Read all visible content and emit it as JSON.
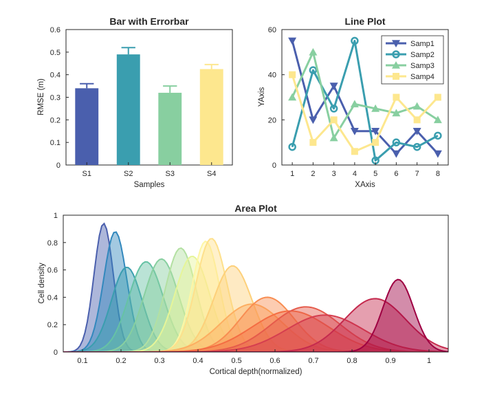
{
  "chart_data": [
    {
      "type": "bar",
      "title": "Bar with Errorbar",
      "xlabel": "Samples",
      "ylabel": "RMSE (m)",
      "categories": [
        "S1",
        "S2",
        "S3",
        "S4"
      ],
      "values": [
        0.34,
        0.49,
        0.32,
        0.425
      ],
      "errors": [
        0.02,
        0.03,
        0.03,
        0.02
      ],
      "colors": [
        "#4a5fad",
        "#3a9eaf",
        "#88cfa0",
        "#fde78e"
      ],
      "ylim": [
        0,
        0.6
      ],
      "yticks": [
        "0",
        "0.1",
        "0.2",
        "0.3",
        "0.4",
        "0.5",
        "0.6"
      ]
    },
    {
      "type": "line",
      "title": "Line Plot",
      "xlabel": "XAxis",
      "ylabel": "YAxis",
      "x": [
        1,
        2,
        3,
        4,
        5,
        6,
        7,
        8
      ],
      "xlim": [
        0.5,
        8.5
      ],
      "ylim": [
        0,
        60
      ],
      "xticks": [
        "1",
        "2",
        "3",
        "4",
        "5",
        "6",
        "7",
        "8"
      ],
      "yticks": [
        "0",
        "20",
        "40",
        "60"
      ],
      "legend_position": "top-right",
      "series": [
        {
          "name": "Samp1",
          "values": [
            55,
            20,
            35,
            15,
            15,
            5,
            15,
            5
          ],
          "color": "#4a5fad",
          "marker": "triangle-down"
        },
        {
          "name": "Samp2",
          "values": [
            8,
            42,
            25,
            55,
            2,
            10,
            8,
            13
          ],
          "color": "#3a9eaf",
          "marker": "circle"
        },
        {
          "name": "Samp3",
          "values": [
            30,
            50,
            12,
            27,
            25,
            23,
            26,
            20
          ],
          "color": "#88cfa0",
          "marker": "triangle-up"
        },
        {
          "name": "Samp4",
          "values": [
            40,
            10,
            20,
            6,
            10,
            30,
            20,
            30
          ],
          "color": "#fde78e",
          "marker": "square"
        }
      ]
    },
    {
      "type": "area",
      "title": "Area Plot",
      "xlabel": "Cortical depth(normalized)",
      "ylabel": "Cell density",
      "xlim": [
        0.05,
        1.05
      ],
      "ylim": [
        0,
        1
      ],
      "xticks": [
        "0.1",
        "0.2",
        "0.3",
        "0.4",
        "0.5",
        "0.6",
        "0.7",
        "0.8",
        "0.9",
        "1"
      ],
      "yticks": [
        "0",
        "0.2",
        "0.4",
        "0.6",
        "0.8",
        "1"
      ],
      "series": [
        {
          "peak_x": 0.155,
          "peak_y": 0.94,
          "width": 0.025,
          "color": "#4a5fad"
        },
        {
          "peak_x": 0.185,
          "peak_y": 0.88,
          "width": 0.03,
          "color": "#3288bd"
        },
        {
          "peak_x": 0.215,
          "peak_y": 0.62,
          "width": 0.04,
          "color": "#3a9eaf"
        },
        {
          "peak_x": 0.265,
          "peak_y": 0.66,
          "width": 0.045,
          "color": "#66c2a5"
        },
        {
          "peak_x": 0.305,
          "peak_y": 0.68,
          "width": 0.045,
          "color": "#88cfa0"
        },
        {
          "peak_x": 0.355,
          "peak_y": 0.76,
          "width": 0.04,
          "color": "#b3e0a2"
        },
        {
          "peak_x": 0.385,
          "peak_y": 0.7,
          "width": 0.045,
          "color": "#e6f598"
        },
        {
          "peak_x": 0.42,
          "peak_y": 0.81,
          "width": 0.035,
          "color": "#fef6a5"
        },
        {
          "peak_x": 0.435,
          "peak_y": 0.83,
          "width": 0.04,
          "color": "#fee08b"
        },
        {
          "peak_x": 0.49,
          "peak_y": 0.63,
          "width": 0.05,
          "color": "#fdd07a"
        },
        {
          "peak_x": 0.54,
          "peak_y": 0.35,
          "width": 0.08,
          "color": "#fdae61"
        },
        {
          "peak_x": 0.58,
          "peak_y": 0.4,
          "width": 0.07,
          "color": "#f88d52"
        },
        {
          "peak_x": 0.64,
          "peak_y": 0.3,
          "width": 0.1,
          "color": "#f46d43"
        },
        {
          "peak_x": 0.68,
          "peak_y": 0.33,
          "width": 0.09,
          "color": "#e55b4b"
        },
        {
          "peak_x": 0.73,
          "peak_y": 0.27,
          "width": 0.1,
          "color": "#d53e4f"
        },
        {
          "peak_x": 0.86,
          "peak_y": 0.39,
          "width": 0.08,
          "color": "#c52a4e"
        },
        {
          "peak_x": 0.92,
          "peak_y": 0.53,
          "width": 0.04,
          "color": "#9e0142"
        }
      ]
    }
  ]
}
